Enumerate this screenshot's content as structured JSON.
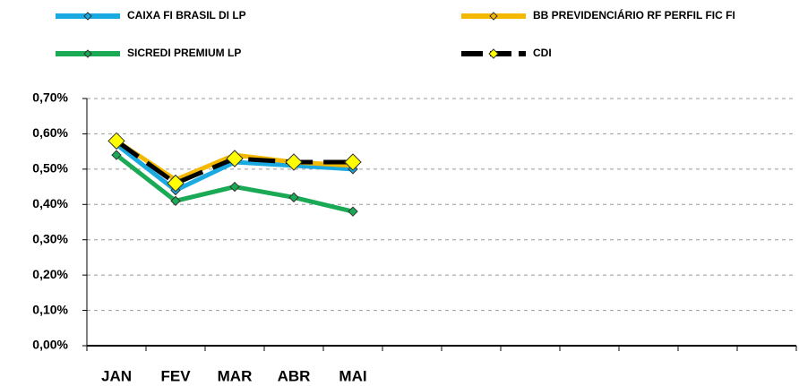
{
  "chart_data": {
    "type": "line",
    "categories": [
      "JAN",
      "FEV",
      "MAR",
      "ABR",
      "MAI",
      null,
      null,
      null,
      null,
      null,
      null,
      null
    ],
    "series": [
      {
        "name": "CAIXA FI BRASIL DI LP",
        "color": "#1ba9e1",
        "marker_color": "#1ba9e1",
        "line_style": "solid",
        "values": [
          0.57,
          0.44,
          0.52,
          0.51,
          0.5,
          null,
          null,
          null,
          null,
          null,
          null,
          null
        ]
      },
      {
        "name": "BB PREVIDENCIÁRIO RF PERFIL FIC FI",
        "color": "#f5b800",
        "marker_color": "#f5b800",
        "line_style": "solid",
        "values": [
          0.58,
          0.47,
          0.54,
          0.52,
          0.51,
          null,
          null,
          null,
          null,
          null,
          null,
          null
        ]
      },
      {
        "name": "SICREDI PREMIUM LP",
        "color": "#1aaa55",
        "marker_color": "#1aaa55",
        "line_style": "solid",
        "values": [
          0.54,
          0.41,
          0.45,
          0.42,
          0.38,
          null,
          null,
          null,
          null,
          null,
          null,
          null
        ]
      },
      {
        "name": "CDI",
        "color": "#000000",
        "marker_color": "#ffff00",
        "line_style": "dashed",
        "values": [
          0.58,
          0.46,
          0.53,
          0.52,
          0.52,
          null,
          null,
          null,
          null,
          null,
          null,
          null
        ]
      }
    ],
    "ylim": [
      0,
      0.7
    ],
    "yticks": [
      {
        "value": 0,
        "label": "0,00%"
      },
      {
        "value": 0.1,
        "label": "0,10%"
      },
      {
        "value": 0.2,
        "label": "0,20%"
      },
      {
        "value": 0.3,
        "label": "0,30%"
      },
      {
        "value": 0.4,
        "label": "0,40%"
      },
      {
        "value": 0.5,
        "label": "0,50%"
      },
      {
        "value": 0.6,
        "label": "0,60%"
      },
      {
        "value": 0.7,
        "label": "0,70%"
      }
    ],
    "grid": true,
    "legend": "top"
  }
}
